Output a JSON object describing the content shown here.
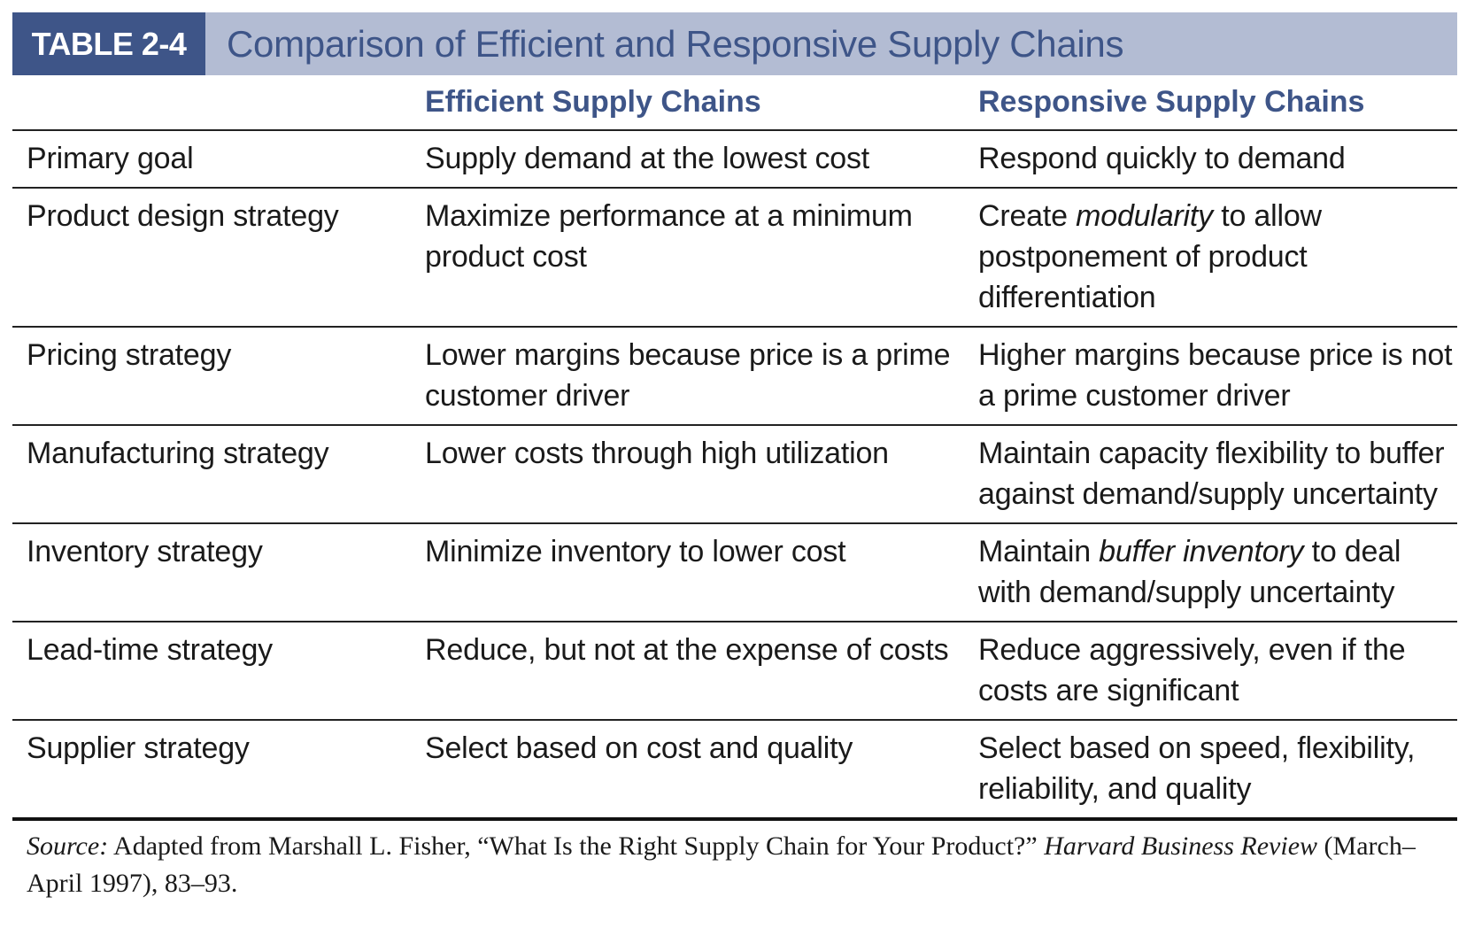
{
  "header": {
    "tag": "TABLE 2-4",
    "title": "Comparison of Efficient and Responsive Supply Chains"
  },
  "columns": {
    "col1": "",
    "col2": "Efficient Supply Chains",
    "col3": "Responsive Supply Chains"
  },
  "rows": [
    {
      "label": "Primary goal",
      "efficient": "Supply demand at the lowest cost",
      "responsive_pre": "Respond quickly to demand",
      "responsive_em": "",
      "responsive_post": ""
    },
    {
      "label": "Product design strategy",
      "efficient": "Maximize performance at a minimum product cost",
      "responsive_pre": "Create ",
      "responsive_em": "modularity",
      "responsive_post": " to allow postponement of product differentiation"
    },
    {
      "label": "Pricing strategy",
      "efficient": "Lower margins because price is a prime customer driver",
      "responsive_pre": "Higher margins because price is not a prime customer driver",
      "responsive_em": "",
      "responsive_post": ""
    },
    {
      "label": "Manufacturing strategy",
      "efficient": "Lower costs through high utilization",
      "responsive_pre": "Maintain capacity flexibility to buffer against demand/supply uncertainty",
      "responsive_em": "",
      "responsive_post": ""
    },
    {
      "label": "Inventory strategy",
      "efficient": "Minimize inventory to lower cost",
      "responsive_pre": "Maintain ",
      "responsive_em": "buffer inventory",
      "responsive_post": " to deal with demand/supply uncertainty"
    },
    {
      "label": "Lead-time strategy",
      "efficient": "Reduce, but not at the expense of costs",
      "responsive_pre": "Reduce aggressively, even if the costs are significant",
      "responsive_em": "",
      "responsive_post": ""
    },
    {
      "label": "Supplier strategy",
      "efficient": "Select based on cost and quality",
      "responsive_pre": "Select based on speed, flexibility, reliability, and quality",
      "responsive_em": "",
      "responsive_post": ""
    }
  ],
  "source": {
    "label": "Source:",
    "text_a": " Adapted from Marshall L. Fisher, “What Is the Right Supply Chain for Your Product?” ",
    "journal": "Harvard Business Review",
    "text_b": " (March–April 1997), 83–93."
  },
  "colors": {
    "tag_bg": "#3e5588",
    "title_bar_bg": "#b3bcd3",
    "accent_text": "#3e5588"
  }
}
